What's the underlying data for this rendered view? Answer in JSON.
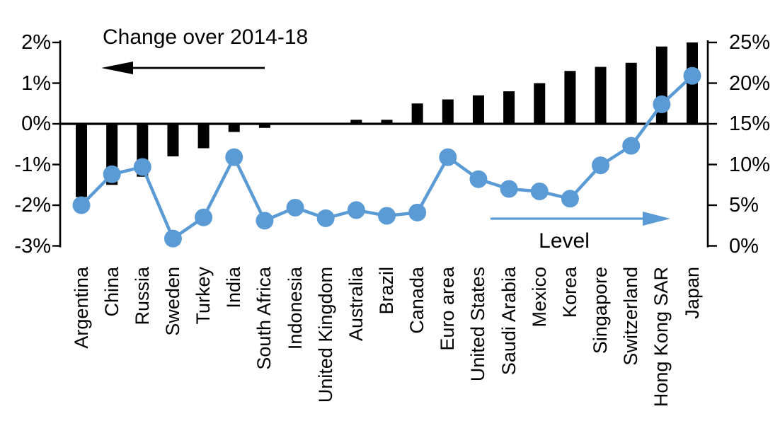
{
  "chart_data": {
    "type": "bar+line",
    "title": "Change over 2014-18",
    "categories": [
      "Argentina",
      "China",
      "Russia",
      "Sweden",
      "Turkey",
      "India",
      "South Africa",
      "Indonesia",
      "United Kingdom",
      "Australia",
      "Brazil",
      "Canada",
      "Euro area",
      "United States",
      "Saudi Arabia",
      "Mexico",
      "Korea",
      "Singapore",
      "Switzerland",
      "Hong Kong SAR",
      "Japan"
    ],
    "series": [
      {
        "name": "Change over 2014-18",
        "type": "bar",
        "axis": "left",
        "color": "#000000",
        "values": [
          -1.8,
          -1.5,
          -1.3,
          -0.8,
          -0.6,
          -0.2,
          -0.1,
          0.0,
          0.0,
          0.1,
          0.1,
          0.5,
          0.6,
          0.7,
          0.8,
          1.0,
          1.3,
          1.4,
          1.5,
          1.9,
          2.0
        ]
      },
      {
        "name": "Level",
        "type": "line",
        "axis": "right",
        "color": "#5B9BD5",
        "values": [
          5.0,
          8.8,
          9.7,
          0.9,
          3.5,
          10.9,
          3.1,
          4.7,
          3.4,
          4.4,
          3.7,
          4.1,
          10.9,
          8.2,
          7.0,
          6.7,
          5.8,
          9.9,
          12.3,
          17.4,
          20.9
        ]
      }
    ],
    "left_axis": {
      "tick_labels": [
        "2%",
        "1%",
        "0%",
        "-1%",
        "-2%",
        "-3%"
      ],
      "tick_values": [
        2,
        1,
        0,
        -1,
        -2,
        -3
      ],
      "min": -3,
      "max": 2
    },
    "right_axis": {
      "tick_labels": [
        "25%",
        "20%",
        "15%",
        "10%",
        "5%",
        "0%"
      ],
      "tick_values": [
        25,
        20,
        15,
        10,
        5,
        0
      ],
      "min": 0,
      "max": 25
    },
    "annotations": {
      "bar_series_label": "Change over 2014-18",
      "line_series_label": "Level",
      "bar_arrow_direction": "left",
      "line_arrow_direction": "right"
    },
    "grid": false,
    "background": "#ffffff"
  }
}
